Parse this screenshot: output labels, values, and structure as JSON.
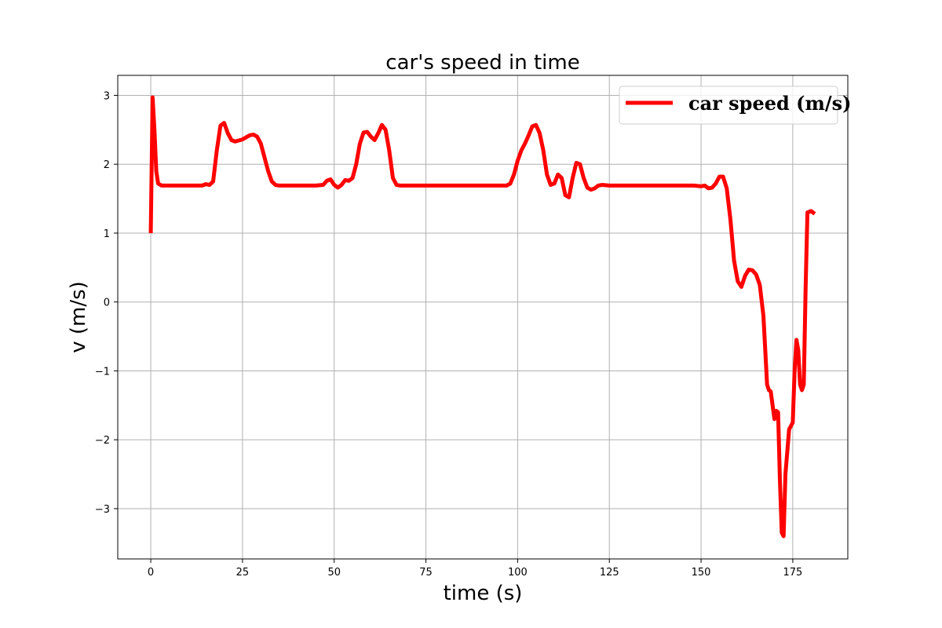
{
  "chart_data": {
    "type": "line",
    "title": "car's speed in time",
    "xlabel": "time (s)",
    "ylabel": "v (m/s)",
    "xlim": [
      -9,
      190
    ],
    "ylim": [
      -3.73,
      3.29
    ],
    "xticks": [
      0,
      25,
      50,
      75,
      100,
      125,
      150,
      175
    ],
    "yticks": [
      -3,
      -2,
      -1,
      0,
      1,
      2,
      3
    ],
    "grid": true,
    "legend_position": "top-right",
    "series": [
      {
        "name": "car speed (m/s)",
        "color": "#ff0000",
        "x": [
          0,
          0.5,
          1.0,
          1.5,
          2.0,
          3.0,
          5,
          8,
          12,
          14,
          15,
          16,
          17,
          18,
          19,
          20,
          21,
          22,
          23,
          25,
          27,
          28,
          29,
          30,
          31,
          32,
          33,
          34,
          35,
          40,
          45,
          47,
          48,
          49,
          50,
          51,
          52,
          53,
          54,
          55,
          56,
          57,
          58,
          59,
          60,
          61,
          62,
          63,
          64,
          65,
          66,
          67,
          68,
          70,
          80,
          90,
          95,
          97,
          98,
          99,
          100,
          101,
          102,
          103,
          104,
          105,
          106,
          107,
          108,
          109,
          110,
          111,
          112,
          113,
          114,
          115,
          116,
          117,
          118,
          119,
          120,
          121,
          122,
          123,
          125,
          130,
          140,
          145,
          148,
          150,
          151,
          152,
          153,
          154,
          155,
          156,
          157,
          158,
          159,
          160,
          161,
          162,
          163,
          164,
          165,
          166,
          167,
          168,
          168.5,
          169,
          170,
          170.5,
          171,
          171.5,
          172,
          172.5,
          173,
          174,
          175,
          175.5,
          176,
          176.5,
          177,
          177.5,
          178,
          178.5,
          179,
          180,
          181
        ],
        "values": [
          1.0,
          2.97,
          2.5,
          1.9,
          1.72,
          1.69,
          1.69,
          1.69,
          1.69,
          1.69,
          1.71,
          1.7,
          1.75,
          2.2,
          2.56,
          2.6,
          2.45,
          2.35,
          2.33,
          2.36,
          2.42,
          2.43,
          2.4,
          2.3,
          2.1,
          1.9,
          1.75,
          1.7,
          1.69,
          1.69,
          1.69,
          1.7,
          1.76,
          1.78,
          1.7,
          1.66,
          1.7,
          1.77,
          1.76,
          1.8,
          2.0,
          2.3,
          2.46,
          2.47,
          2.4,
          2.35,
          2.45,
          2.57,
          2.5,
          2.2,
          1.8,
          1.7,
          1.69,
          1.69,
          1.69,
          1.69,
          1.69,
          1.69,
          1.72,
          1.85,
          2.05,
          2.2,
          2.3,
          2.42,
          2.55,
          2.57,
          2.45,
          2.2,
          1.85,
          1.7,
          1.72,
          1.85,
          1.8,
          1.55,
          1.52,
          1.8,
          2.02,
          2.0,
          1.8,
          1.66,
          1.63,
          1.65,
          1.69,
          1.7,
          1.69,
          1.69,
          1.69,
          1.69,
          1.69,
          1.68,
          1.69,
          1.65,
          1.66,
          1.72,
          1.82,
          1.82,
          1.65,
          1.2,
          0.6,
          0.3,
          0.22,
          0.38,
          0.47,
          0.46,
          0.4,
          0.25,
          -0.2,
          -1.2,
          -1.28,
          -1.3,
          -1.7,
          -1.58,
          -1.6,
          -2.6,
          -3.35,
          -3.4,
          -2.5,
          -1.85,
          -1.75,
          -1.0,
          -0.55,
          -0.7,
          -1.2,
          -1.28,
          -1.2,
          0.2,
          1.3,
          1.32,
          1.28
        ]
      }
    ]
  }
}
